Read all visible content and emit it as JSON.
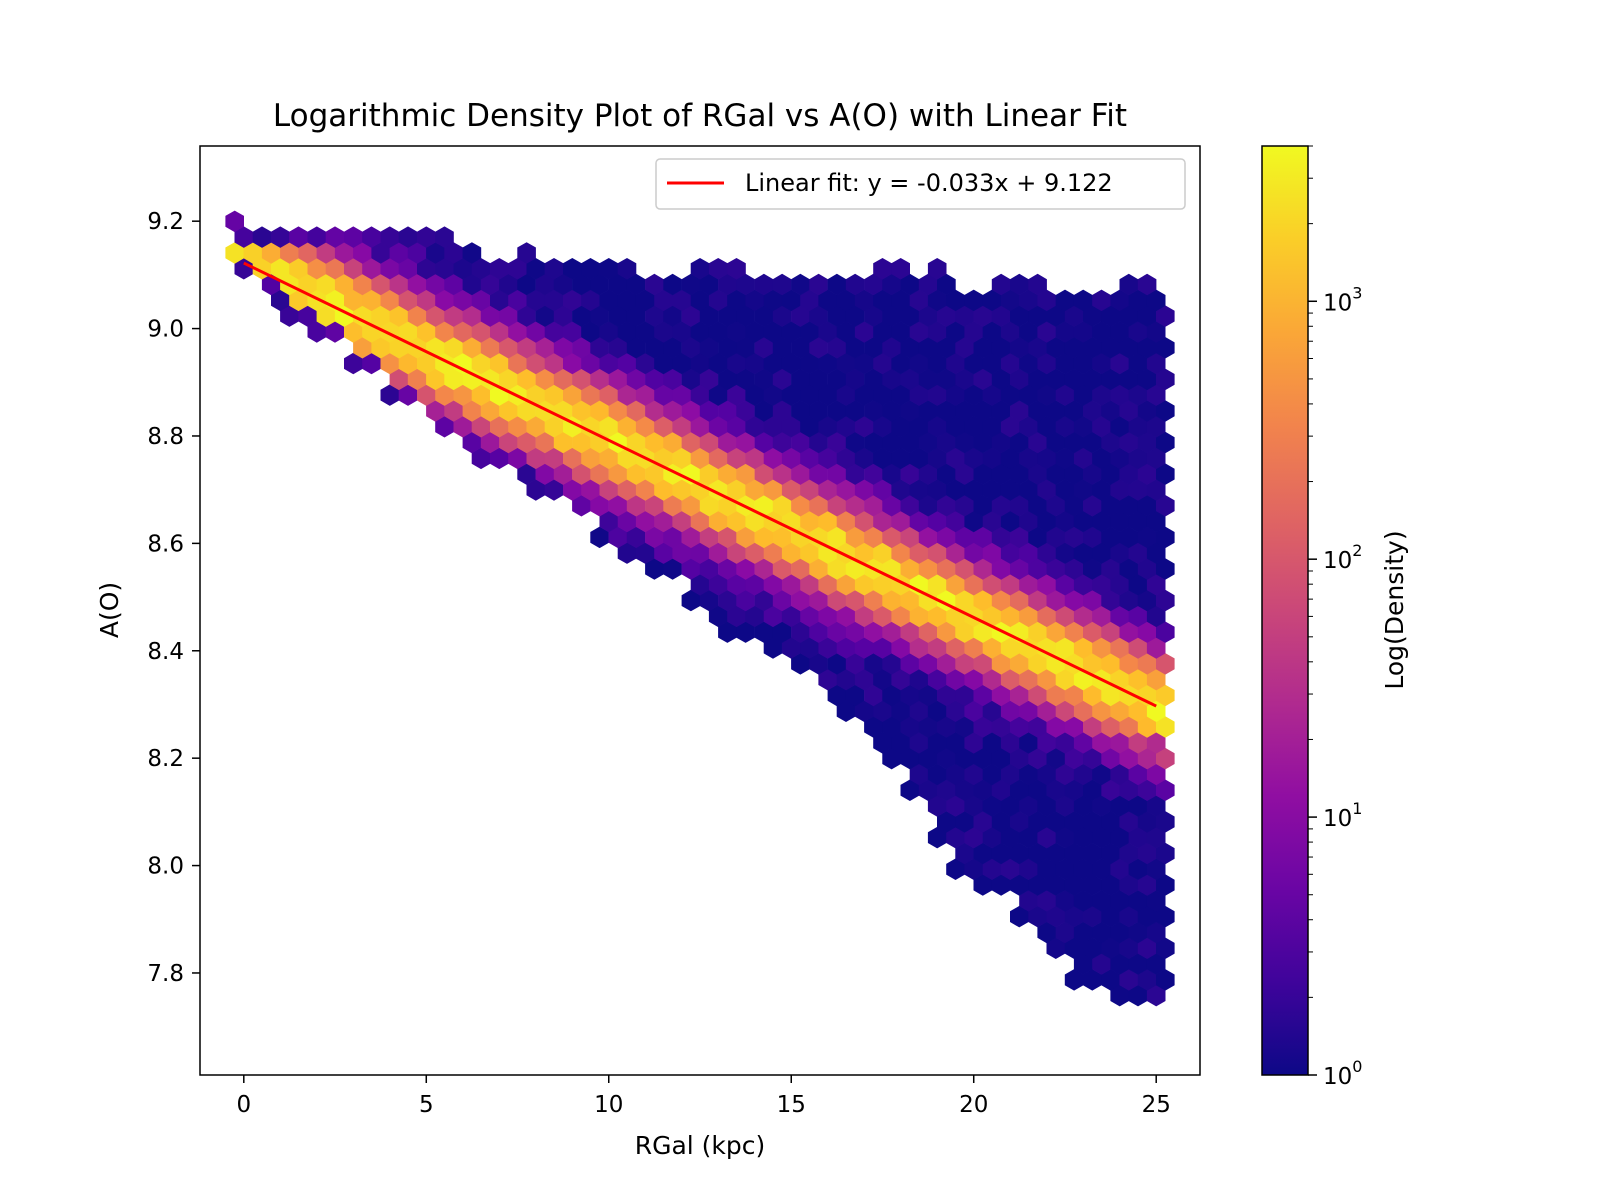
{
  "chart_data": {
    "type": "hexbin",
    "title": "Logarithmic Density Plot of RGal vs A(O) with Linear Fit",
    "xlabel": "RGal (kpc)",
    "ylabel": "A(O)",
    "xlim": [
      -1.2,
      26.2
    ],
    "ylim": [
      7.61,
      9.34
    ],
    "xticks": [
      0,
      5,
      10,
      15,
      20,
      25
    ],
    "xtick_labels": [
      "0",
      "5",
      "10",
      "15",
      "20",
      "25"
    ],
    "yticks": [
      7.8,
      8.0,
      8.2,
      8.4,
      8.6,
      8.8,
      9.0,
      9.2
    ],
    "ytick_labels": [
      "7.8",
      "8.0",
      "8.2",
      "8.4",
      "8.6",
      "8.8",
      "9.0",
      "9.2"
    ],
    "colormap": "plasma",
    "colorbar": {
      "label": "Log(Density)",
      "scale": "log",
      "range": [
        1,
        4000
      ],
      "major_ticks": [
        {
          "value": 1,
          "base": "10",
          "exp": "0"
        },
        {
          "value": 10,
          "base": "10",
          "exp": "1"
        },
        {
          "value": 100,
          "base": "10",
          "exp": "2"
        },
        {
          "value": 1000,
          "base": "10",
          "exp": "3"
        }
      ]
    },
    "fit": {
      "label": "Linear fit: y = -0.033x + 9.122",
      "slope": -0.033,
      "intercept": 9.122,
      "x_range": [
        0,
        25
      ],
      "color": "#ff0000"
    },
    "legend": {
      "location": "upper right"
    },
    "density_model": {
      "gridsize_x": 50,
      "x_min": 0,
      "x_max": 25,
      "upper_edge": [
        [
          0,
          9.2
        ],
        [
          2,
          9.18
        ],
        [
          5,
          9.16
        ],
        [
          8,
          9.13
        ],
        [
          12,
          9.11
        ],
        [
          18,
          9.1
        ],
        [
          25,
          9.08
        ]
      ],
      "lower_edge": [
        [
          0,
          9.1
        ],
        [
          3,
          8.94
        ],
        [
          5,
          8.82
        ],
        [
          8,
          8.7
        ],
        [
          10,
          8.6
        ],
        [
          12,
          8.5
        ],
        [
          15,
          8.38
        ],
        [
          18,
          8.2
        ],
        [
          19,
          8.04
        ],
        [
          21,
          7.93
        ],
        [
          23,
          7.78
        ],
        [
          25,
          7.72
        ]
      ],
      "ridge_width": 0.08,
      "peak_density": 3000
    }
  }
}
